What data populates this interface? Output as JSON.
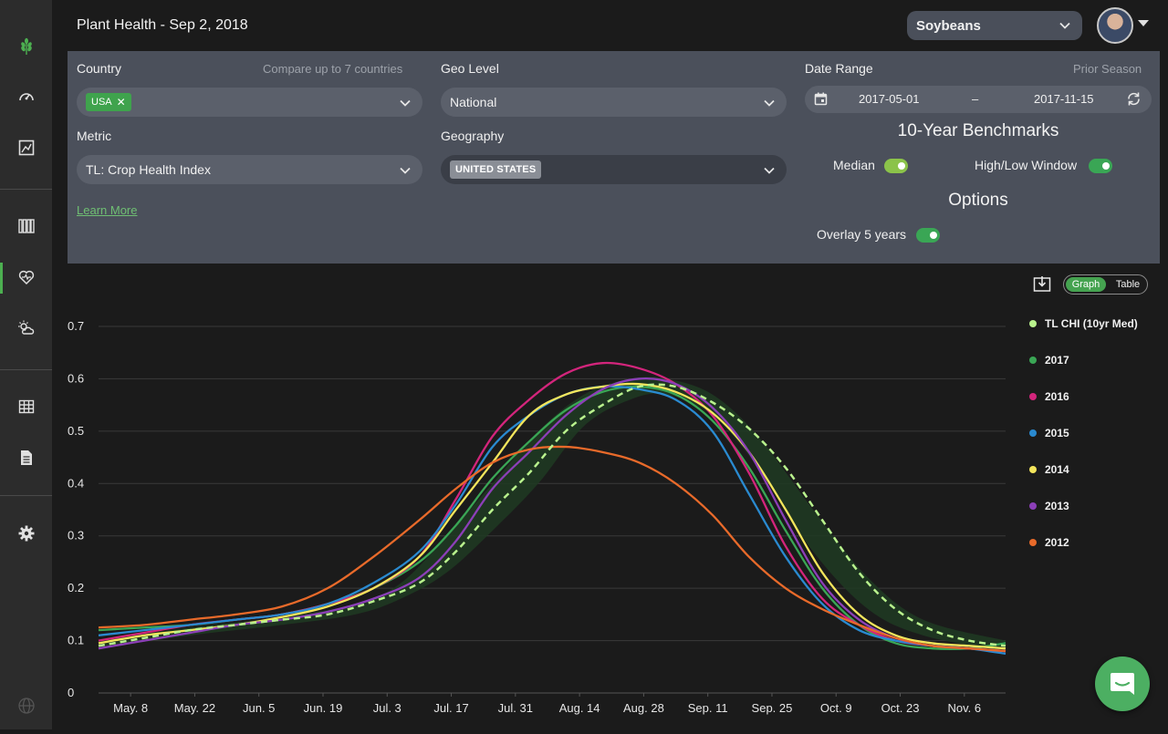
{
  "page": {
    "title": "Plant Health - Sep 2, 2018"
  },
  "header": {
    "crop_select": "Soybeans"
  },
  "sidebar": {
    "items": [
      {
        "name": "logo",
        "icon": "wheat-icon"
      },
      {
        "name": "dashboard",
        "icon": "gauge-icon"
      },
      {
        "name": "map",
        "icon": "map-image-icon"
      },
      {
        "name": "reports",
        "icon": "books-icon"
      },
      {
        "name": "plant-health",
        "icon": "heart-pulse-icon",
        "active": true
      },
      {
        "name": "weather",
        "icon": "sun-cloud-icon"
      },
      {
        "name": "tables",
        "icon": "grid-table-icon"
      },
      {
        "name": "documents",
        "icon": "document-icon"
      },
      {
        "name": "settings",
        "icon": "gear-icon"
      },
      {
        "name": "globe",
        "icon": "globe-icon"
      }
    ]
  },
  "filters": {
    "country_label": "Country",
    "country_hint": "Compare up to 7 countries",
    "country_chip": "USA",
    "geo_level_label": "Geo Level",
    "geo_level_value": "National",
    "metric_label": "Metric",
    "metric_value": "TL: Crop Health Index",
    "geography_label": "Geography",
    "geography_chip": "UNITED STATES",
    "learn_more": "Learn More",
    "date_range_label": "Date Range",
    "prior_season": "Prior Season",
    "date_start": "2017-05-01",
    "date_sep": "–",
    "date_end": "2017-11-15",
    "benchmarks_title": "10-Year Benchmarks",
    "median_label": "Median",
    "median_on": true,
    "highlow_label": "High/Low Window",
    "highlow_on": true,
    "options_title": "Options",
    "overlay_label": "Overlay 5 years",
    "overlay_on": true
  },
  "view_toggle": {
    "graph": "Graph",
    "table": "Table",
    "active": "graph"
  },
  "colors": {
    "accent": "#4caf50",
    "median": "#b9f28d",
    "band": "#1f3a22"
  },
  "chart_data": {
    "type": "line",
    "x_ticks": [
      "May. 8",
      "May. 22",
      "Jun. 5",
      "Jun. 19",
      "Jul. 3",
      "Jul. 17",
      "Jul. 31",
      "Aug. 14",
      "Aug. 28",
      "Sep. 11",
      "Sep. 25",
      "Oct. 9",
      "Oct. 23",
      "Nov. 6"
    ],
    "x_tick_days": [
      7,
      21,
      35,
      49,
      63,
      77,
      91,
      105,
      119,
      133,
      147,
      161,
      175,
      189
    ],
    "xlim": [
      0,
      198
    ],
    "y_ticks": [
      0,
      0.1,
      0.2,
      0.3,
      0.4,
      0.5,
      0.6,
      0.7
    ],
    "ylim": [
      0,
      0.7
    ],
    "grid": true,
    "legend": "right",
    "band": {
      "name": "High/Low Window",
      "x": [
        0,
        20,
        40,
        56,
        66,
        76,
        86,
        96,
        106,
        116,
        124,
        134,
        144,
        156,
        168,
        180,
        198
      ],
      "low": [
        0.085,
        0.11,
        0.13,
        0.15,
        0.18,
        0.23,
        0.31,
        0.4,
        0.51,
        0.56,
        0.57,
        0.53,
        0.43,
        0.27,
        0.16,
        0.11,
        0.08
      ],
      "high": [
        0.1,
        0.125,
        0.145,
        0.17,
        0.21,
        0.3,
        0.4,
        0.5,
        0.57,
        0.6,
        0.6,
        0.57,
        0.49,
        0.35,
        0.22,
        0.14,
        0.1
      ]
    },
    "series": [
      {
        "name": "TL CHI (10yr Med)",
        "color": "#b9f28d",
        "dashed": true,
        "x": [
          0,
          10,
          20,
          30,
          40,
          50,
          60,
          70,
          78,
          86,
          94,
          102,
          110,
          118,
          126,
          134,
          142,
          150,
          158,
          166,
          174,
          182,
          190,
          198
        ],
        "y": [
          0.09,
          0.105,
          0.12,
          0.13,
          0.14,
          0.15,
          0.175,
          0.21,
          0.27,
          0.35,
          0.42,
          0.5,
          0.55,
          0.585,
          0.585,
          0.555,
          0.505,
          0.43,
          0.33,
          0.23,
          0.16,
          0.12,
          0.1,
          0.09
        ]
      },
      {
        "name": "2017",
        "color": "#3aa655",
        "dashed": false,
        "x": [
          0,
          10,
          20,
          30,
          40,
          50,
          60,
          70,
          78,
          86,
          94,
          102,
          110,
          118,
          126,
          134,
          142,
          150,
          158,
          166,
          174,
          182,
          190,
          198
        ],
        "y": [
          0.12,
          0.125,
          0.13,
          0.14,
          0.15,
          0.17,
          0.2,
          0.25,
          0.32,
          0.41,
          0.48,
          0.54,
          0.575,
          0.585,
          0.57,
          0.52,
          0.43,
          0.31,
          0.2,
          0.13,
          0.095,
          0.085,
          0.085,
          0.095
        ]
      },
      {
        "name": "2016",
        "color": "#d3257c",
        "dashed": false,
        "x": [
          0,
          10,
          20,
          30,
          40,
          50,
          60,
          70,
          78,
          86,
          94,
          102,
          110,
          118,
          126,
          134,
          142,
          150,
          158,
          166,
          174,
          182,
          190,
          198
        ],
        "y": [
          0.1,
          0.115,
          0.13,
          0.14,
          0.15,
          0.17,
          0.2,
          0.26,
          0.37,
          0.49,
          0.56,
          0.61,
          0.63,
          0.62,
          0.59,
          0.53,
          0.42,
          0.28,
          0.18,
          0.13,
          0.1,
          0.09,
          0.085,
          0.08
        ]
      },
      {
        "name": "2015",
        "color": "#2a8ad0",
        "dashed": false,
        "x": [
          0,
          10,
          20,
          30,
          40,
          50,
          60,
          70,
          78,
          86,
          94,
          102,
          110,
          118,
          126,
          134,
          142,
          150,
          158,
          166,
          174,
          182,
          190,
          198
        ],
        "y": [
          0.11,
          0.12,
          0.13,
          0.14,
          0.15,
          0.17,
          0.21,
          0.27,
          0.36,
          0.47,
          0.53,
          0.57,
          0.585,
          0.58,
          0.56,
          0.5,
          0.38,
          0.26,
          0.17,
          0.12,
          0.1,
          0.09,
          0.085,
          0.075
        ]
      },
      {
        "name": "2014",
        "color": "#f3e55c",
        "dashed": false,
        "x": [
          0,
          10,
          20,
          30,
          40,
          50,
          60,
          70,
          78,
          86,
          94,
          102,
          110,
          118,
          126,
          134,
          142,
          150,
          158,
          166,
          174,
          182,
          190,
          198
        ],
        "y": [
          0.095,
          0.11,
          0.12,
          0.13,
          0.145,
          0.165,
          0.2,
          0.26,
          0.35,
          0.44,
          0.53,
          0.57,
          0.585,
          0.59,
          0.575,
          0.535,
          0.46,
          0.35,
          0.23,
          0.15,
          0.11,
          0.095,
          0.09,
          0.085
        ]
      },
      {
        "name": "2013",
        "color": "#8c3fb8",
        "dashed": false,
        "x": [
          0,
          10,
          20,
          30,
          40,
          50,
          60,
          70,
          78,
          86,
          94,
          102,
          110,
          118,
          126,
          134,
          142,
          150,
          158,
          166,
          174,
          182,
          190,
          198
        ],
        "y": [
          0.085,
          0.1,
          0.115,
          0.13,
          0.14,
          0.155,
          0.18,
          0.22,
          0.29,
          0.39,
          0.46,
          0.53,
          0.58,
          0.6,
          0.59,
          0.545,
          0.46,
          0.33,
          0.21,
          0.14,
          0.105,
          0.09,
          0.085,
          0.08
        ]
      },
      {
        "name": "2012",
        "color": "#e86a2a",
        "dashed": false,
        "x": [
          0,
          10,
          20,
          30,
          40,
          50,
          60,
          70,
          78,
          86,
          94,
          102,
          110,
          118,
          126,
          134,
          142,
          150,
          158,
          166,
          174,
          182,
          190,
          198
        ],
        "y": [
          0.125,
          0.13,
          0.14,
          0.15,
          0.165,
          0.2,
          0.26,
          0.33,
          0.39,
          0.44,
          0.465,
          0.47,
          0.46,
          0.44,
          0.4,
          0.34,
          0.26,
          0.2,
          0.16,
          0.13,
          0.105,
          0.09,
          0.085,
          0.08
        ]
      }
    ]
  }
}
